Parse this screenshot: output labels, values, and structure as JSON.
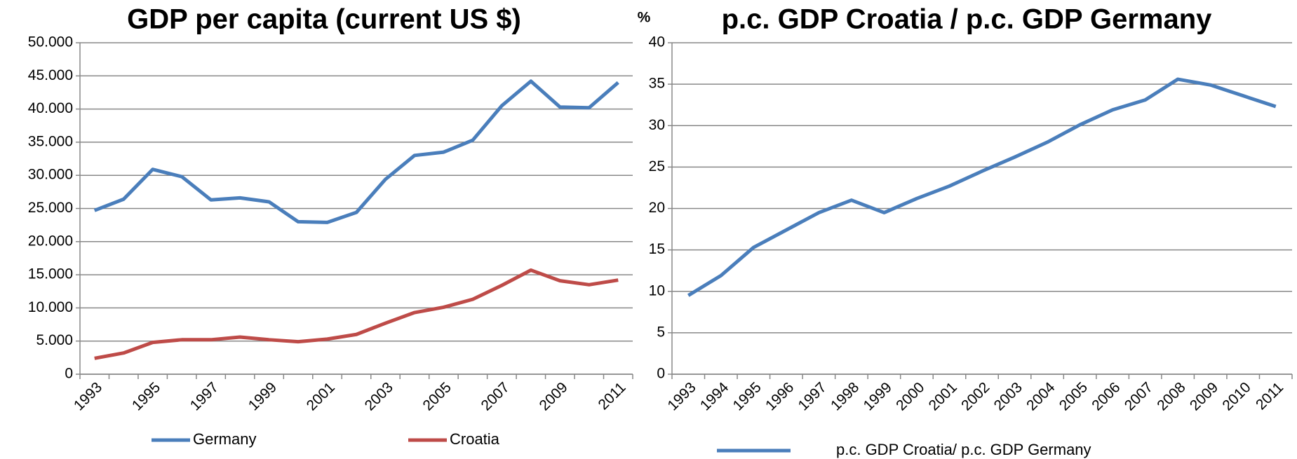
{
  "chart_data": [
    {
      "type": "line",
      "title": "GDP per capita (current US $)",
      "categories": [
        "1993",
        null,
        "1995",
        null,
        "1997",
        null,
        "1999",
        null,
        "2001",
        null,
        "2003",
        null,
        "2005",
        null,
        "2007",
        null,
        "2009",
        null,
        "2011"
      ],
      "series": [
        {
          "name": "Germany",
          "color": "#4a7ebb",
          "values": [
            24700,
            26400,
            30900,
            29800,
            26300,
            26600,
            26000,
            23000,
            22900,
            24400,
            29400,
            33000,
            33500,
            35300,
            40500,
            44200,
            40300,
            40200,
            44000
          ]
        },
        {
          "name": "Croatia",
          "color": "#be4b48",
          "values": [
            2400,
            3200,
            4800,
            5200,
            5200,
            5600,
            5200,
            4900,
            5300,
            6000,
            7700,
            9300,
            10100,
            11300,
            13400,
            15700,
            14100,
            13500,
            14200
          ]
        }
      ],
      "ylim": [
        0,
        50000
      ],
      "yticks": [
        0,
        {
          "value": 5000,
          "label": "5.000"
        },
        {
          "value": 10000,
          "label": "10.000"
        },
        {
          "value": 15000,
          "label": "15.000"
        },
        {
          "value": 20000,
          "label": "20.000"
        },
        {
          "value": 25000,
          "label": "25.000"
        },
        {
          "value": 30000,
          "label": "30.000"
        },
        {
          "value": 35000,
          "label": "35.000"
        },
        {
          "value": 40000,
          "label": "40.000"
        },
        {
          "value": 45000,
          "label": "45.000"
        },
        {
          "value": 50000,
          "label": "50.000"
        }
      ],
      "grid": true
    },
    {
      "type": "line",
      "title": "p.c. GDP Croatia / p.c. GDP Germany",
      "y_unit": "%",
      "categories": [
        "1993",
        "1994",
        "1995",
        "1996",
        "1997",
        "1998",
        "1999",
        "2000",
        "2001",
        "2002",
        "2003",
        "2004",
        "2005",
        "2006",
        "2007",
        "2008",
        "2009",
        "2010",
        "2011"
      ],
      "series": [
        {
          "name": "p.c. GDP Croatia/ p.c. GDP Germany",
          "color": "#4a7ebb",
          "values": [
            9.5,
            11.9,
            15.3,
            17.4,
            19.5,
            21.0,
            19.5,
            21.2,
            22.7,
            24.5,
            26.2,
            28.0,
            30.1,
            31.9,
            33.1,
            35.6,
            34.9,
            33.6,
            32.3
          ]
        }
      ],
      "ylim": [
        0,
        40
      ],
      "yticks": [
        0,
        5,
        10,
        15,
        20,
        25,
        30,
        35,
        40
      ],
      "grid": true
    }
  ]
}
